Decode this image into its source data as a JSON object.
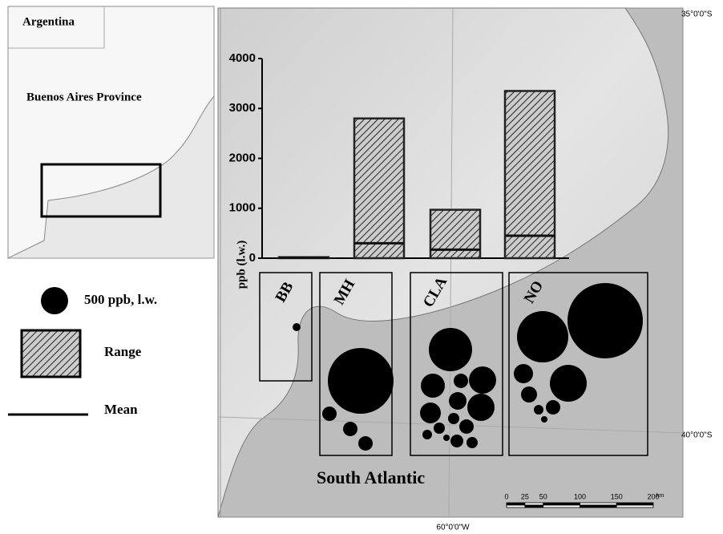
{
  "inset_map": {
    "country_label": "Argentina",
    "province_label": "Buenos Aires Province"
  },
  "main_map": {
    "latitude_labels": [
      "35°0'0\"S",
      "40°0'0\"S"
    ],
    "longitude_label": "60°0'0\"W",
    "sea_label": "South Atlantic",
    "scale_bar": {
      "ticks": [
        0,
        25,
        50,
        100,
        150,
        200
      ],
      "unit": "km"
    }
  },
  "legend": {
    "bubble": {
      "value": 500,
      "label": "500 ppb, l.w."
    }
  },
  "chart_data": {
    "type": "bar",
    "y_label": "ppb (l.w.)",
    "categories": [
      "BB",
      "MH",
      "CLA",
      "NO"
    ],
    "series": [
      {
        "name": "Range",
        "color": "#222222",
        "values": [
          20,
          2800,
          970,
          3350
        ]
      },
      {
        "name": "Mean",
        "color": "#111111",
        "values": [
          8,
          300,
          170,
          450
        ]
      }
    ],
    "ylim": [
      0,
      4000
    ],
    "yticks": [
      0,
      1000,
      2000,
      3000,
      4000
    ],
    "bubbles": [
      [
        43
      ],
      [
        2908,
        140,
        140,
        140
      ],
      [
        1261,
        389,
        140,
        500,
        209,
        500,
        292,
        85,
        140,
        85,
        62,
        111,
        85,
        28
      ],
      [
        3821,
        1772,
        915,
        249,
        173,
        140,
        62,
        28
      ]
    ]
  }
}
